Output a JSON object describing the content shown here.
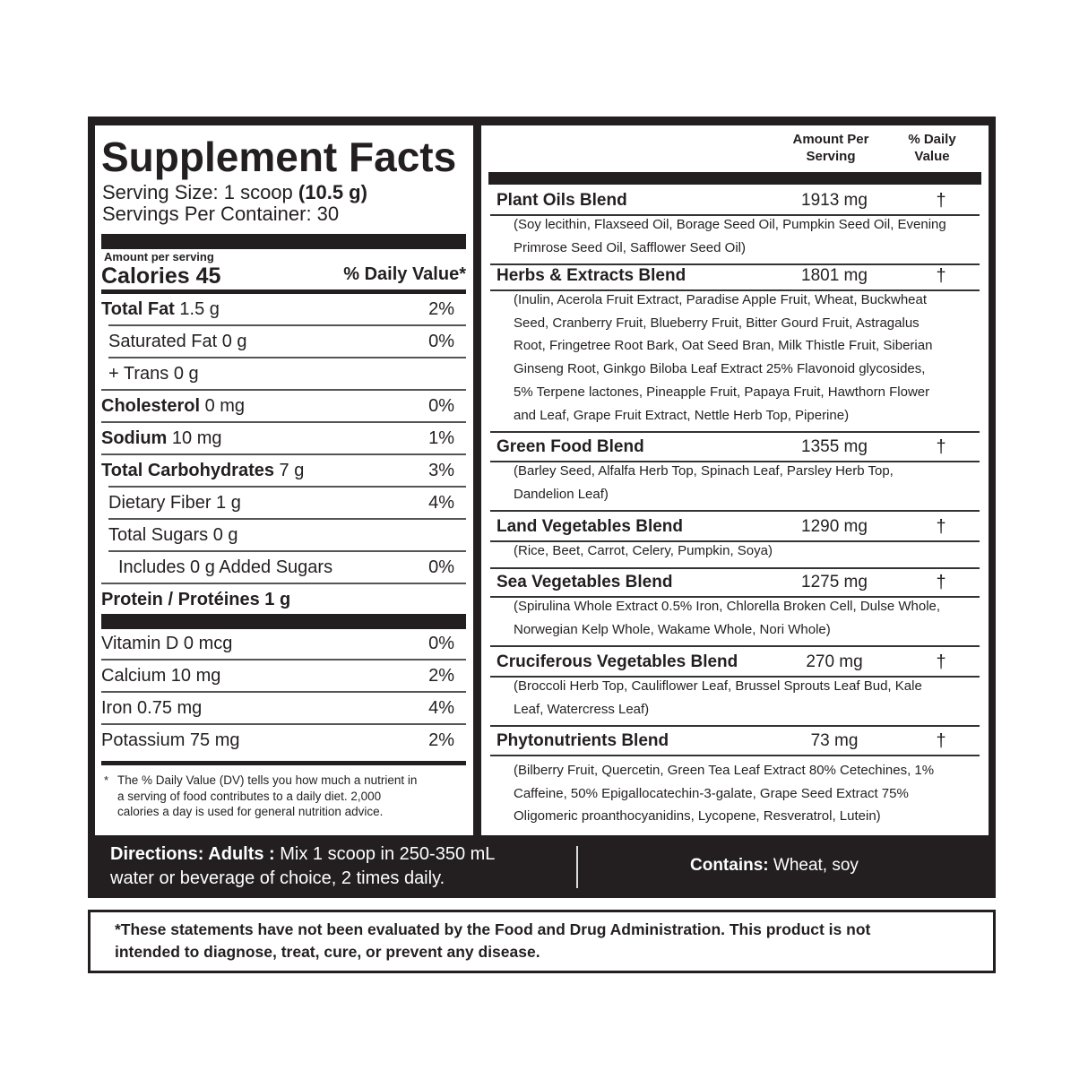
{
  "title": "Supplement Facts",
  "serving_size_label": "Serving Size: 1 scoop ",
  "serving_size_value": "(10.5 g)",
  "servings_per_container": "Servings Per Container: 30",
  "amount_per_serving": "Amount per serving",
  "calories": "Calories 45",
  "daily_value_header": "% Daily Value*",
  "nutrients": [
    {
      "label": "Total Fat",
      "amount": " 1.5 g",
      "dv": "2%"
    },
    {
      "label": "Saturated Fat 0 g",
      "amount": "",
      "dv": "0%"
    },
    {
      "label": "+ Trans 0 g",
      "amount": "",
      "dv": ""
    },
    {
      "label": "Cholesterol",
      "amount": " 0 mg",
      "dv": "0%"
    },
    {
      "label": "Sodium",
      "amount": " 10 mg",
      "dv": "1%"
    },
    {
      "label": "Total Carbohydrates",
      "amount": " 7 g",
      "dv": "3%"
    },
    {
      "label": "Dietary Fiber 1 g",
      "amount": "",
      "dv": "4%"
    },
    {
      "label": "Total Sugars 0 g",
      "amount": "",
      "dv": ""
    },
    {
      "label": "Includes 0 g Added Sugars",
      "amount": "",
      "dv": "0%"
    },
    {
      "label": "Protein / Protéines 1 g",
      "amount": "",
      "dv": ""
    }
  ],
  "vitamins": [
    {
      "label": "Vitamin D 0 mcg",
      "dv": "0%"
    },
    {
      "label": "Calcium 10 mg",
      "dv": "2%"
    },
    {
      "label": "Iron 0.75 mg",
      "dv": "4%"
    },
    {
      "label": "Potassium  75 mg",
      "dv": "2%"
    }
  ],
  "footnote": [
    "*",
    "The % Daily Value (DV) tells you how much a nutrient in",
    "a serving of food contributes to a daily diet. 2,000",
    "calories a day is used for general nutrition advice."
  ],
  "right_header": {
    "amount": [
      "Amount Per",
      "Serving"
    ],
    "dv": [
      "% Daily",
      "Value"
    ]
  },
  "blends": [
    {
      "name": "Plant Oils Blend",
      "amount": "1913 mg",
      "dv": "†",
      "desc": [
        "(Soy lecithin, Flaxseed Oil, Borage Seed Oil, Pumpkin Seed Oil, Evening",
        "Primrose Seed Oil, Safflower Seed Oil)"
      ]
    },
    {
      "name": "Herbs & Extracts Blend",
      "amount": "1801 mg",
      "dv": "†",
      "desc": [
        "(Inulin, Acerola Fruit Extract, Paradise Apple Fruit, Wheat, Buckwheat",
        "Seed, Cranberry Fruit, Blueberry Fruit, Bitter Gourd Fruit, Astragalus",
        "Root, Fringetree Root Bark, Oat Seed Bran, Milk Thistle Fruit, Siberian",
        "Ginseng Root, Ginkgo Biloba Leaf Extract 25% Flavonoid glycosides,",
        "5% Terpene lactones, Pineapple Fruit, Papaya Fruit, Hawthorn Flower",
        "and Leaf, Grape Fruit Extract, Nettle Herb Top, Piperine)"
      ]
    },
    {
      "name": "Green Food Blend",
      "amount": "1355 mg",
      "dv": "†",
      "desc": [
        "(Barley Seed, Alfalfa Herb Top, Spinach Leaf, Parsley Herb Top,",
        "Dandelion Leaf)"
      ]
    },
    {
      "name": "Land Vegetables Blend",
      "amount": "1290 mg",
      "dv": "†",
      "desc": [
        "(Rice, Beet, Carrot, Celery, Pumpkin, Soya)"
      ]
    },
    {
      "name": "Sea Vegetables Blend",
      "amount": "1275 mg",
      "dv": "†",
      "desc": [
        "(Spirulina Whole Extract 0.5% Iron, Chlorella Broken Cell, Dulse Whole,",
        "Norwegian Kelp Whole, Wakame Whole, Nori Whole)"
      ]
    },
    {
      "name": "Cruciferous Vegetables Blend",
      "amount": "270 mg",
      "dv": "†",
      "desc": [
        "(Broccoli Herb Top, Cauliflower Leaf, Brussel Sprouts Leaf Bud, Kale",
        "Leaf, Watercress Leaf)"
      ]
    },
    {
      "name": "Phytonutrients Blend",
      "amount": "73 mg",
      "dv": "†",
      "desc": [
        "(Bilberry Fruit, Quercetin, Green Tea Leaf Extract 80% Cetechines, 1%",
        "Caffeine, 50% Epigallocatechin-3-galate, Grape Seed Extract 75%",
        "Oligomeric proanthocyanidins, Lycopene, Resveratrol, Lutein)"
      ]
    }
  ],
  "directions": {
    "label": "Directions: Adults :",
    "line1": " Mix 1 scoop in 250-350 mL",
    "line2": "water or beverage of choice, 2 times daily."
  },
  "contains": {
    "label": "Contains:",
    "value": " Wheat, soy"
  },
  "disclaimer": [
    "*These statements have not been evaluated by the Food and Drug Administration. This product is not",
    "intended to diagnose, treat, cure, or prevent any disease."
  ]
}
